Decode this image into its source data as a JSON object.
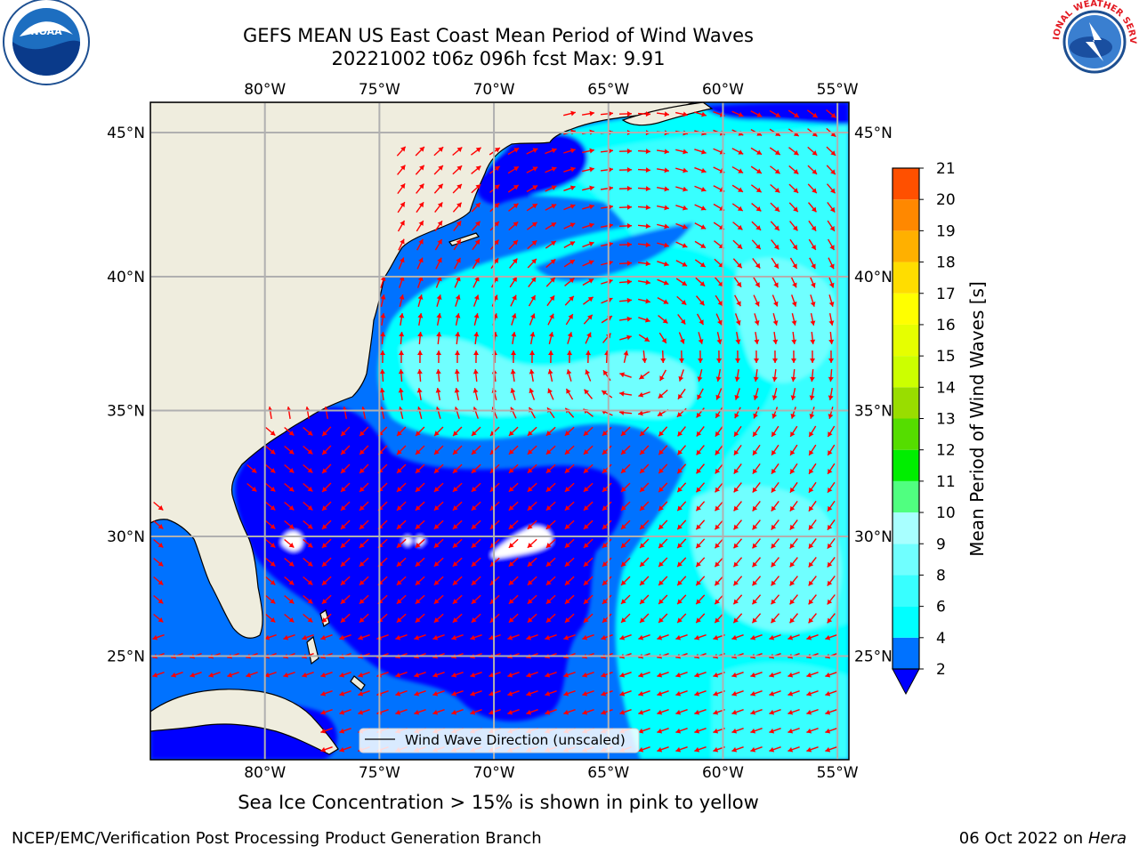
{
  "title": {
    "line1": "GEFS MEAN US East Coast Mean Period of Wind Waves",
    "line2": "20221002 t06z 096h fcst   Max: 9.91"
  },
  "map": {
    "lon_range": [
      -85,
      -54.5
    ],
    "lat_range": [
      20.5,
      46
    ],
    "lon_ticks": [
      "80°W",
      "75°W",
      "70°W",
      "65°W",
      "60°W",
      "55°W"
    ],
    "lat_ticks": [
      "25°N",
      "30°N",
      "35°N",
      "40°N",
      "45°N"
    ],
    "legend_label": "Wind Wave Direction (unscaled)",
    "land_color": "#efedde",
    "arrow_color": "#ff0000"
  },
  "colorbar": {
    "label": "Mean Period of Wind Waves [s]",
    "ticks": [
      "2",
      "4",
      "6",
      "8",
      "9",
      "10",
      "11",
      "12",
      "13",
      "14",
      "15",
      "16",
      "17",
      "18",
      "19",
      "20",
      "21"
    ],
    "colors": [
      "#0072ff",
      "#00ffff",
      "#38ffff",
      "#70ffff",
      "#a8ffff",
      "#50ff80",
      "#00ee00",
      "#55dd00",
      "#99dd00",
      "#ccff00",
      "#e6ff00",
      "#ffff00",
      "#ffdd00",
      "#ffb000",
      "#ff8800",
      "#ff5000",
      "#ff2000",
      "#ff0000"
    ],
    "under_color": "#0000ff"
  },
  "subtitle": "Sea Ice Concentration > 15% is shown in pink to yellow",
  "footer": {
    "credit": "NCEP/EMC/Verification Post Processing Product Generation Branch",
    "date": "06 Oct 2022 on ",
    "machine": "Hera"
  },
  "logos": {
    "noaa": "NOAA",
    "nws": "NATIONAL WEATHER SERVICE"
  }
}
